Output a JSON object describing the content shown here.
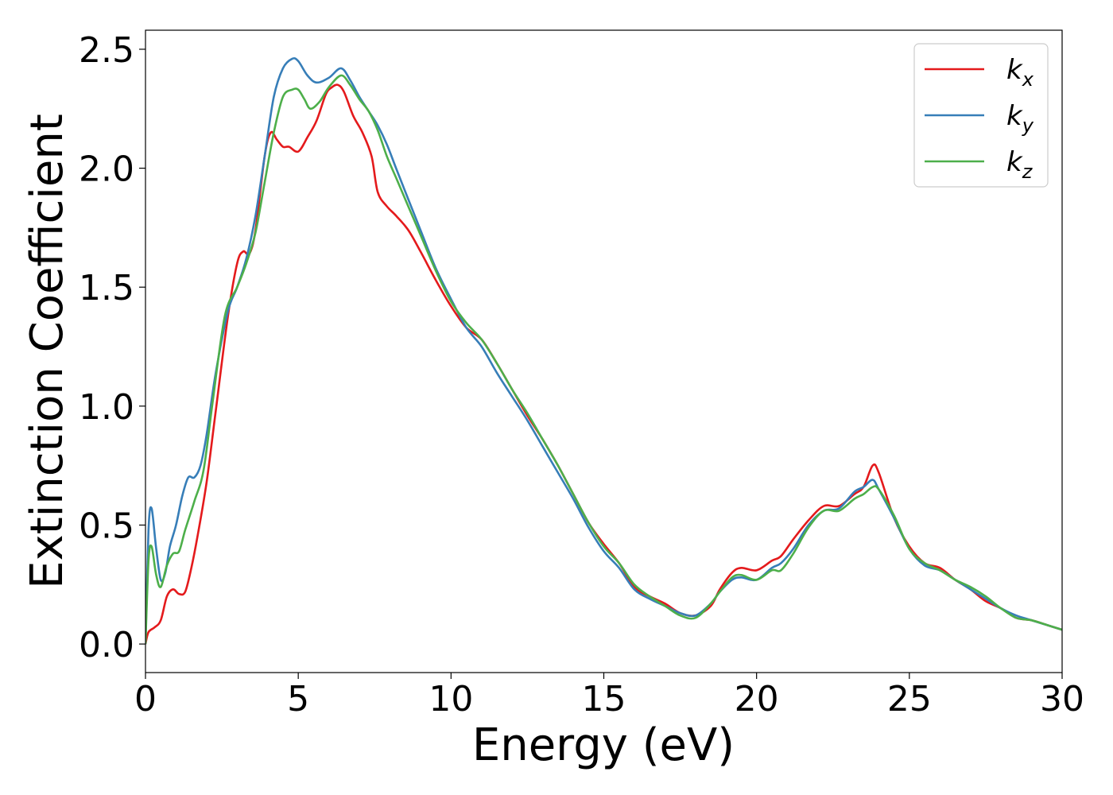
{
  "chart_data": {
    "type": "line",
    "xlabel": "Energy (eV)",
    "ylabel": "Extinction Coefficient",
    "xlim": [
      0,
      30
    ],
    "ylim": [
      -0.12,
      2.58
    ],
    "xticks": [
      0,
      5,
      10,
      15,
      20,
      25,
      30
    ],
    "yticks": [
      0.0,
      0.5,
      1.0,
      1.5,
      2.0,
      2.5
    ],
    "xtick_labels": [
      "0",
      "5",
      "10",
      "15",
      "20",
      "25",
      "30"
    ],
    "ytick_labels": [
      "0.0",
      "0.5",
      "1.0",
      "1.5",
      "2.0",
      "2.5"
    ],
    "grid": false,
    "legend_position": "top-right",
    "series": [
      {
        "name": "k",
        "subscript": "x",
        "color": "#e41a1c",
        "points": [
          [
            0,
            0
          ],
          [
            0.1,
            0.05
          ],
          [
            0.3,
            0.07
          ],
          [
            0.5,
            0.1
          ],
          [
            0.7,
            0.2
          ],
          [
            0.9,
            0.23
          ],
          [
            1.1,
            0.21
          ],
          [
            1.3,
            0.22
          ],
          [
            1.5,
            0.32
          ],
          [
            1.7,
            0.45
          ],
          [
            2.0,
            0.68
          ],
          [
            2.3,
            0.98
          ],
          [
            2.7,
            1.38
          ],
          [
            3.0,
            1.6
          ],
          [
            3.2,
            1.65
          ],
          [
            3.4,
            1.64
          ],
          [
            3.6,
            1.74
          ],
          [
            3.9,
            2.05
          ],
          [
            4.1,
            2.15
          ],
          [
            4.3,
            2.12
          ],
          [
            4.5,
            2.09
          ],
          [
            4.7,
            2.09
          ],
          [
            5.0,
            2.07
          ],
          [
            5.3,
            2.13
          ],
          [
            5.6,
            2.2
          ],
          [
            5.9,
            2.31
          ],
          [
            6.1,
            2.34
          ],
          [
            6.3,
            2.35
          ],
          [
            6.5,
            2.32
          ],
          [
            6.8,
            2.22
          ],
          [
            7.1,
            2.15
          ],
          [
            7.4,
            2.05
          ],
          [
            7.6,
            1.9
          ],
          [
            7.9,
            1.84
          ],
          [
            8.2,
            1.8
          ],
          [
            8.6,
            1.74
          ],
          [
            9.0,
            1.65
          ],
          [
            9.5,
            1.53
          ],
          [
            10.0,
            1.42
          ],
          [
            10.5,
            1.33
          ],
          [
            11.0,
            1.28
          ],
          [
            11.5,
            1.18
          ],
          [
            12.0,
            1.07
          ],
          [
            12.5,
            0.96
          ],
          [
            13.0,
            0.86
          ],
          [
            13.5,
            0.75
          ],
          [
            14.0,
            0.63
          ],
          [
            14.5,
            0.51
          ],
          [
            15.0,
            0.42
          ],
          [
            15.5,
            0.34
          ],
          [
            16.0,
            0.24
          ],
          [
            16.5,
            0.2
          ],
          [
            17.0,
            0.17
          ],
          [
            17.5,
            0.13
          ],
          [
            18.0,
            0.12
          ],
          [
            18.5,
            0.16
          ],
          [
            18.8,
            0.23
          ],
          [
            19.2,
            0.3
          ],
          [
            19.5,
            0.32
          ],
          [
            20.0,
            0.31
          ],
          [
            20.5,
            0.35
          ],
          [
            20.8,
            0.37
          ],
          [
            21.2,
            0.44
          ],
          [
            21.7,
            0.52
          ],
          [
            22.2,
            0.58
          ],
          [
            22.7,
            0.58
          ],
          [
            23.2,
            0.63
          ],
          [
            23.5,
            0.66
          ],
          [
            23.8,
            0.75
          ],
          [
            24.0,
            0.72
          ],
          [
            24.5,
            0.53
          ],
          [
            25.0,
            0.41
          ],
          [
            25.5,
            0.34
          ],
          [
            26.0,
            0.32
          ],
          [
            26.5,
            0.27
          ],
          [
            27.0,
            0.23
          ],
          [
            27.5,
            0.18
          ],
          [
            28.0,
            0.15
          ],
          [
            28.5,
            0.11
          ],
          [
            29.0,
            0.1
          ],
          [
            29.5,
            0.08
          ],
          [
            30.0,
            0.06
          ]
        ]
      },
      {
        "name": "k",
        "subscript": "y",
        "color": "#377eb8",
        "points": [
          [
            0,
            0
          ],
          [
            0.1,
            0.48
          ],
          [
            0.2,
            0.57
          ],
          [
            0.35,
            0.4
          ],
          [
            0.5,
            0.27
          ],
          [
            0.65,
            0.3
          ],
          [
            0.8,
            0.41
          ],
          [
            1.0,
            0.5
          ],
          [
            1.2,
            0.62
          ],
          [
            1.4,
            0.7
          ],
          [
            1.6,
            0.7
          ],
          [
            1.8,
            0.75
          ],
          [
            2.0,
            0.88
          ],
          [
            2.3,
            1.14
          ],
          [
            2.7,
            1.4
          ],
          [
            3.0,
            1.5
          ],
          [
            3.3,
            1.62
          ],
          [
            3.6,
            1.8
          ],
          [
            3.9,
            2.05
          ],
          [
            4.2,
            2.3
          ],
          [
            4.5,
            2.42
          ],
          [
            4.8,
            2.46
          ],
          [
            5.0,
            2.45
          ],
          [
            5.3,
            2.39
          ],
          [
            5.6,
            2.36
          ],
          [
            6.0,
            2.38
          ],
          [
            6.4,
            2.42
          ],
          [
            6.7,
            2.37
          ],
          [
            7.0,
            2.3
          ],
          [
            7.3,
            2.24
          ],
          [
            7.6,
            2.18
          ],
          [
            7.9,
            2.1
          ],
          [
            8.2,
            2.0
          ],
          [
            8.6,
            1.87
          ],
          [
            9.0,
            1.74
          ],
          [
            9.5,
            1.58
          ],
          [
            10.0,
            1.45
          ],
          [
            10.5,
            1.33
          ],
          [
            11.0,
            1.25
          ],
          [
            11.5,
            1.14
          ],
          [
            12.0,
            1.04
          ],
          [
            12.5,
            0.94
          ],
          [
            13.0,
            0.83
          ],
          [
            13.5,
            0.72
          ],
          [
            14.0,
            0.61
          ],
          [
            14.5,
            0.49
          ],
          [
            15.0,
            0.39
          ],
          [
            15.5,
            0.32
          ],
          [
            16.0,
            0.23
          ],
          [
            16.5,
            0.19
          ],
          [
            17.0,
            0.16
          ],
          [
            17.5,
            0.13
          ],
          [
            18.0,
            0.12
          ],
          [
            18.5,
            0.17
          ],
          [
            18.8,
            0.22
          ],
          [
            19.2,
            0.27
          ],
          [
            19.5,
            0.28
          ],
          [
            20.0,
            0.27
          ],
          [
            20.5,
            0.32
          ],
          [
            20.8,
            0.34
          ],
          [
            21.2,
            0.4
          ],
          [
            21.7,
            0.5
          ],
          [
            22.2,
            0.56
          ],
          [
            22.7,
            0.57
          ],
          [
            23.2,
            0.64
          ],
          [
            23.5,
            0.66
          ],
          [
            23.8,
            0.69
          ],
          [
            24.0,
            0.65
          ],
          [
            24.5,
            0.53
          ],
          [
            25.0,
            0.4
          ],
          [
            25.5,
            0.33
          ],
          [
            26.0,
            0.31
          ],
          [
            26.5,
            0.27
          ],
          [
            27.0,
            0.23
          ],
          [
            27.5,
            0.19
          ],
          [
            28.0,
            0.15
          ],
          [
            28.5,
            0.12
          ],
          [
            29.0,
            0.1
          ],
          [
            29.5,
            0.08
          ],
          [
            30.0,
            0.06
          ]
        ]
      },
      {
        "name": "k",
        "subscript": "z",
        "color": "#4daf4a",
        "points": [
          [
            0,
            0
          ],
          [
            0.1,
            0.35
          ],
          [
            0.2,
            0.41
          ],
          [
            0.35,
            0.29
          ],
          [
            0.5,
            0.24
          ],
          [
            0.7,
            0.33
          ],
          [
            0.9,
            0.38
          ],
          [
            1.1,
            0.39
          ],
          [
            1.3,
            0.48
          ],
          [
            1.6,
            0.6
          ],
          [
            1.9,
            0.73
          ],
          [
            2.2,
            1.02
          ],
          [
            2.6,
            1.38
          ],
          [
            3.0,
            1.5
          ],
          [
            3.3,
            1.6
          ],
          [
            3.6,
            1.73
          ],
          [
            3.9,
            1.94
          ],
          [
            4.2,
            2.15
          ],
          [
            4.5,
            2.3
          ],
          [
            4.8,
            2.33
          ],
          [
            5.0,
            2.33
          ],
          [
            5.2,
            2.29
          ],
          [
            5.4,
            2.25
          ],
          [
            5.7,
            2.28
          ],
          [
            6.0,
            2.34
          ],
          [
            6.4,
            2.39
          ],
          [
            6.7,
            2.35
          ],
          [
            7.0,
            2.29
          ],
          [
            7.3,
            2.24
          ],
          [
            7.6,
            2.16
          ],
          [
            7.9,
            2.05
          ],
          [
            8.2,
            1.96
          ],
          [
            8.6,
            1.84
          ],
          [
            9.0,
            1.72
          ],
          [
            9.5,
            1.57
          ],
          [
            10.0,
            1.44
          ],
          [
            10.5,
            1.35
          ],
          [
            11.0,
            1.28
          ],
          [
            11.5,
            1.18
          ],
          [
            12.0,
            1.07
          ],
          [
            12.5,
            0.97
          ],
          [
            13.0,
            0.86
          ],
          [
            13.5,
            0.75
          ],
          [
            14.0,
            0.63
          ],
          [
            14.5,
            0.51
          ],
          [
            15.0,
            0.41
          ],
          [
            15.5,
            0.34
          ],
          [
            16.0,
            0.25
          ],
          [
            16.5,
            0.2
          ],
          [
            17.0,
            0.16
          ],
          [
            17.5,
            0.12
          ],
          [
            18.0,
            0.11
          ],
          [
            18.5,
            0.17
          ],
          [
            18.8,
            0.22
          ],
          [
            19.2,
            0.28
          ],
          [
            19.5,
            0.29
          ],
          [
            20.0,
            0.27
          ],
          [
            20.5,
            0.31
          ],
          [
            20.8,
            0.31
          ],
          [
            21.2,
            0.38
          ],
          [
            21.7,
            0.49
          ],
          [
            22.2,
            0.56
          ],
          [
            22.7,
            0.56
          ],
          [
            23.2,
            0.61
          ],
          [
            23.5,
            0.63
          ],
          [
            23.8,
            0.66
          ],
          [
            24.0,
            0.65
          ],
          [
            24.5,
            0.54
          ],
          [
            25.0,
            0.4
          ],
          [
            25.5,
            0.34
          ],
          [
            26.0,
            0.31
          ],
          [
            26.5,
            0.27
          ],
          [
            27.0,
            0.24
          ],
          [
            27.5,
            0.2
          ],
          [
            28.0,
            0.15
          ],
          [
            28.5,
            0.11
          ],
          [
            29.0,
            0.1
          ],
          [
            29.5,
            0.08
          ],
          [
            30.0,
            0.06
          ]
        ]
      }
    ]
  }
}
